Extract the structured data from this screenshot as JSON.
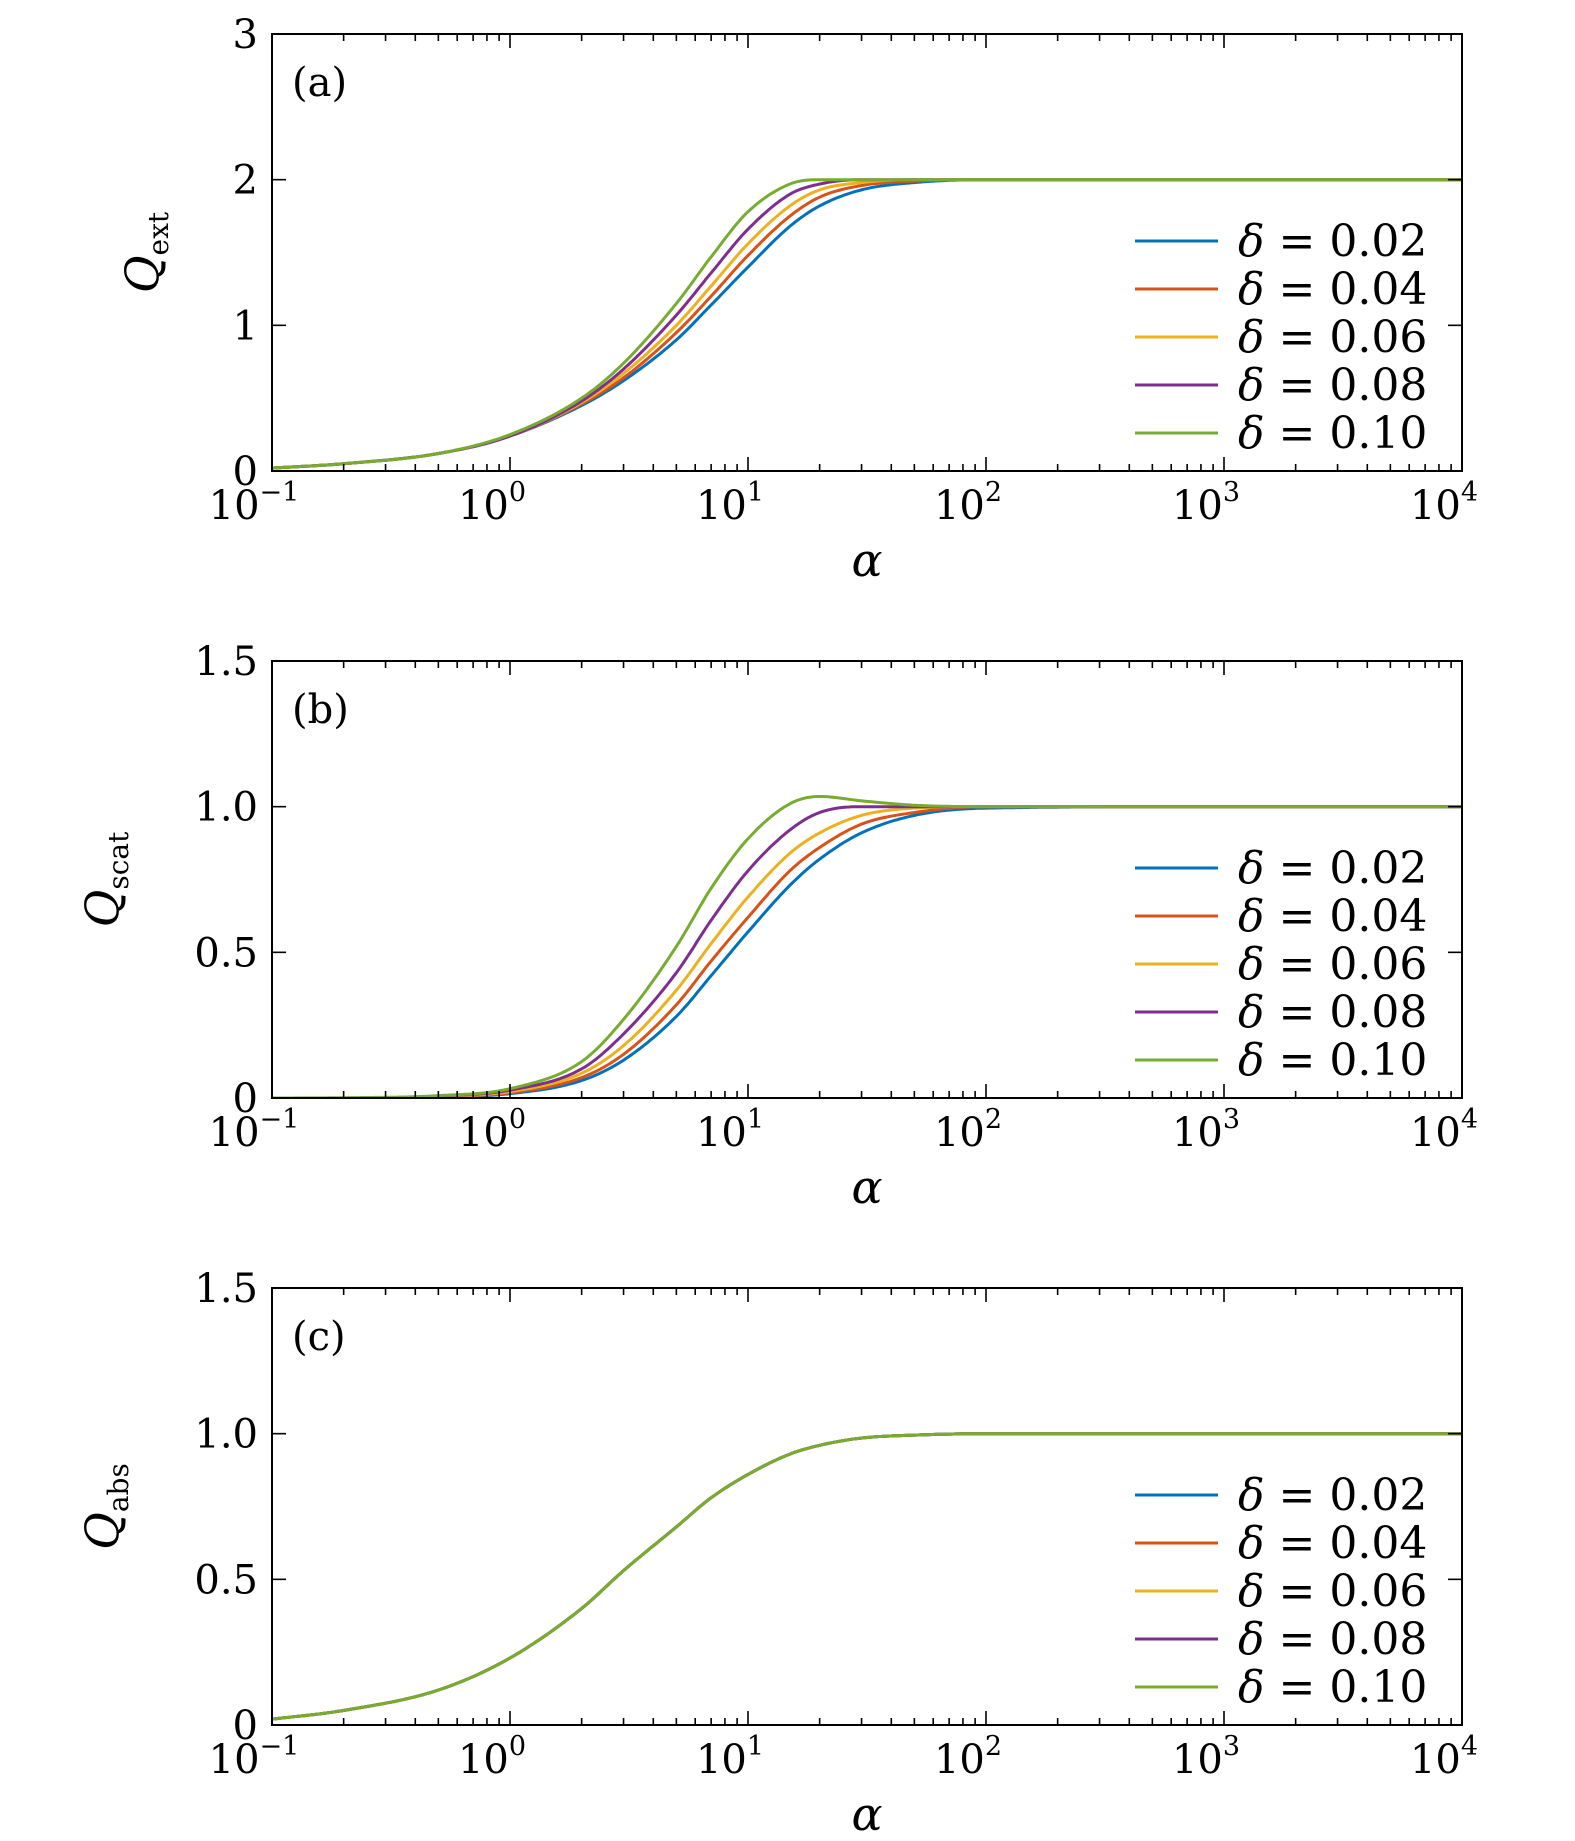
{
  "figure": {
    "x_axis": {
      "label": "α",
      "scale": "log",
      "xlim": [
        0.1,
        10000
      ],
      "ticks": [
        {
          "base": "10",
          "exp": "−1"
        },
        {
          "base": "10",
          "exp": "0"
        },
        {
          "base": "10",
          "exp": "1"
        },
        {
          "base": "10",
          "exp": "2"
        },
        {
          "base": "10",
          "exp": "3"
        },
        {
          "base": "10",
          "exp": "4"
        }
      ]
    },
    "legend": {
      "placement": "center-right",
      "symbol": "δ",
      "entries": [
        "= 0.02",
        "= 0.04",
        "= 0.06",
        "= 0.08",
        "= 0.10"
      ]
    }
  },
  "chart_data": [
    {
      "type": "line",
      "panel": "(a)",
      "ylabel": "Q",
      "ylabel_sub": "ext",
      "xlabel": "α",
      "xscale": "log",
      "xlim": [
        0.1,
        10000
      ],
      "ylim": [
        0,
        3
      ],
      "yticks": [
        0,
        1,
        2,
        3
      ],
      "ytick_labels": [
        "0",
        "1",
        "2",
        "3"
      ],
      "x": [
        0.1,
        0.2,
        0.5,
        1,
        2,
        3,
        5,
        7,
        10,
        15,
        20,
        30,
        50,
        100,
        1000,
        10000
      ],
      "series": [
        {
          "name": "δ = 0.02",
          "color": "#0072bd",
          "values": [
            0.02,
            0.05,
            0.12,
            0.24,
            0.45,
            0.62,
            0.9,
            1.14,
            1.4,
            1.68,
            1.82,
            1.93,
            1.98,
            2.0,
            2.0,
            2.0
          ]
        },
        {
          "name": "δ = 0.04",
          "color": "#d95319",
          "values": [
            0.02,
            0.05,
            0.12,
            0.24,
            0.46,
            0.64,
            0.95,
            1.2,
            1.48,
            1.75,
            1.88,
            1.96,
            1.99,
            2.0,
            2.0,
            2.0
          ]
        },
        {
          "name": "δ = 0.06",
          "color": "#edb120",
          "values": [
            0.02,
            0.05,
            0.12,
            0.24,
            0.47,
            0.67,
            1.0,
            1.27,
            1.56,
            1.82,
            1.93,
            1.98,
            2.0,
            2.0,
            2.0,
            2.0
          ]
        },
        {
          "name": "δ = 0.08",
          "color": "#7e2f8e",
          "values": [
            0.02,
            0.05,
            0.12,
            0.24,
            0.48,
            0.7,
            1.07,
            1.36,
            1.66,
            1.9,
            1.97,
            2.0,
            2.0,
            2.0,
            2.0,
            2.0
          ]
        },
        {
          "name": "δ = 0.10",
          "color": "#77ac30",
          "values": [
            0.02,
            0.05,
            0.12,
            0.25,
            0.5,
            0.74,
            1.15,
            1.47,
            1.78,
            1.97,
            2.0,
            2.0,
            2.0,
            2.0,
            2.0,
            2.0
          ]
        }
      ]
    },
    {
      "type": "line",
      "panel": "(b)",
      "ylabel": "Q",
      "ylabel_sub": "scat",
      "xlabel": "α",
      "xscale": "log",
      "xlim": [
        0.1,
        10000
      ],
      "ylim": [
        0,
        1.5
      ],
      "yticks": [
        0,
        0.5,
        1.0,
        1.5
      ],
      "ytick_labels": [
        "0",
        "0.5",
        "1.0",
        "1.5"
      ],
      "x": [
        0.1,
        0.2,
        0.5,
        1,
        2,
        3,
        5,
        7,
        10,
        15,
        20,
        30,
        50,
        100,
        1000,
        10000
      ],
      "series": [
        {
          "name": "δ = 0.02",
          "color": "#0072bd",
          "values": [
            0.0,
            0.0,
            0.004,
            0.015,
            0.06,
            0.13,
            0.28,
            0.42,
            0.57,
            0.73,
            0.82,
            0.91,
            0.97,
            0.995,
            1.0,
            1.0
          ]
        },
        {
          "name": "δ = 0.04",
          "color": "#d95319",
          "values": [
            0.0,
            0.0,
            0.005,
            0.018,
            0.07,
            0.15,
            0.32,
            0.47,
            0.62,
            0.78,
            0.86,
            0.94,
            0.98,
            1.0,
            1.0,
            1.0
          ]
        },
        {
          "name": "δ = 0.06",
          "color": "#edb120",
          "values": [
            0.0,
            0.0,
            0.006,
            0.022,
            0.085,
            0.18,
            0.37,
            0.53,
            0.69,
            0.84,
            0.91,
            0.97,
            0.995,
            1.0,
            1.0,
            1.0
          ]
        },
        {
          "name": "δ = 0.08",
          "color": "#7e2f8e",
          "values": [
            0.0,
            0.0,
            0.007,
            0.027,
            0.1,
            0.22,
            0.43,
            0.61,
            0.78,
            0.92,
            0.98,
            1.0,
            1.0,
            1.0,
            1.0,
            1.0
          ]
        },
        {
          "name": "δ = 0.10",
          "color": "#77ac30",
          "values": [
            0.0,
            0.001,
            0.008,
            0.032,
            0.125,
            0.27,
            0.52,
            0.72,
            0.89,
            1.01,
            1.035,
            1.02,
            1.005,
            1.0,
            1.0,
            1.0
          ]
        }
      ]
    },
    {
      "type": "line",
      "panel": "(c)",
      "ylabel": "Q",
      "ylabel_sub": "abs",
      "xlabel": "α",
      "xscale": "log",
      "xlim": [
        0.1,
        10000
      ],
      "ylim": [
        0,
        1.5
      ],
      "yticks": [
        0,
        0.5,
        1.0,
        1.5
      ],
      "ytick_labels": [
        "0",
        "0.5",
        "1.0",
        "1.5"
      ],
      "x": [
        0.1,
        0.2,
        0.5,
        1,
        2,
        3,
        5,
        7,
        10,
        15,
        20,
        30,
        50,
        100,
        1000,
        10000
      ],
      "series": [
        {
          "name": "δ = 0.02",
          "color": "#0072bd",
          "values": [
            0.02,
            0.05,
            0.12,
            0.23,
            0.4,
            0.53,
            0.68,
            0.78,
            0.86,
            0.93,
            0.96,
            0.985,
            0.995,
            1.0,
            1.0,
            1.0
          ]
        },
        {
          "name": "δ = 0.04",
          "color": "#d95319",
          "values": [
            0.02,
            0.05,
            0.12,
            0.23,
            0.4,
            0.53,
            0.68,
            0.78,
            0.86,
            0.93,
            0.96,
            0.985,
            0.995,
            1.0,
            1.0,
            1.0
          ]
        },
        {
          "name": "δ = 0.06",
          "color": "#edb120",
          "values": [
            0.02,
            0.05,
            0.12,
            0.23,
            0.4,
            0.53,
            0.68,
            0.78,
            0.86,
            0.93,
            0.96,
            0.985,
            0.995,
            1.0,
            1.0,
            1.0
          ]
        },
        {
          "name": "δ = 0.08",
          "color": "#7e2f8e",
          "values": [
            0.02,
            0.05,
            0.12,
            0.23,
            0.4,
            0.53,
            0.68,
            0.78,
            0.86,
            0.93,
            0.96,
            0.985,
            0.995,
            1.0,
            1.0,
            1.0
          ]
        },
        {
          "name": "δ = 0.10",
          "color": "#77ac30",
          "values": [
            0.02,
            0.05,
            0.12,
            0.23,
            0.4,
            0.53,
            0.68,
            0.78,
            0.86,
            0.93,
            0.96,
            0.985,
            0.995,
            1.0,
            1.0,
            1.0
          ]
        }
      ]
    }
  ]
}
